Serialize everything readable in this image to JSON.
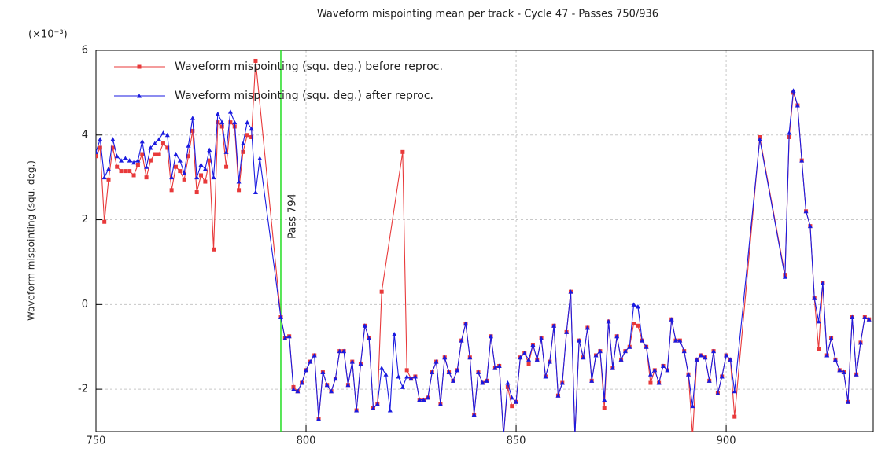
{
  "chart_data": {
    "type": "line",
    "title": "Waveform mispointing mean per track - Cycle 47 - Passes 750/936",
    "y_label": "Waveform mispointing (squ. deg.)",
    "y_multiplier": "(×10⁻³)",
    "xlim": [
      750,
      935
    ],
    "ylim": [
      -3,
      6
    ],
    "xticks": [
      750,
      800,
      850,
      900
    ],
    "yticks": [
      -2,
      0,
      2,
      4,
      6
    ],
    "grid": true,
    "legend": "upper left",
    "marker_line": {
      "x": 794,
      "label": "Pass 794",
      "color": "#22dd22"
    },
    "series": [
      {
        "name": "Waveform mispointing (squ. deg.) before reproc.",
        "color": "#e8393a",
        "marker": "square",
        "x": [
          750,
          751,
          752,
          753,
          754,
          755,
          756,
          757,
          758,
          759,
          760,
          761,
          762,
          763,
          764,
          765,
          766,
          767,
          768,
          769,
          770,
          771,
          772,
          773,
          774,
          775,
          776,
          777,
          778,
          779,
          780,
          781,
          782,
          783,
          784,
          785,
          786,
          787,
          788,
          794,
          795,
          796,
          797,
          798,
          799,
          800,
          801,
          802,
          803,
          804,
          805,
          806,
          807,
          808,
          809,
          810,
          811,
          812,
          813,
          814,
          815,
          816,
          817,
          818,
          823,
          824,
          825,
          826,
          827,
          828,
          829,
          830,
          831,
          832,
          833,
          834,
          835,
          836,
          837,
          838,
          839,
          840,
          841,
          842,
          843,
          844,
          845,
          846,
          847,
          848,
          849,
          850,
          851,
          852,
          853,
          854,
          855,
          856,
          857,
          858,
          859,
          860,
          861,
          862,
          863,
          864,
          865,
          866,
          867,
          868,
          869,
          870,
          871,
          872,
          873,
          874,
          875,
          876,
          877,
          878,
          879,
          880,
          881,
          882,
          883,
          884,
          885,
          886,
          887,
          888,
          889,
          890,
          891,
          892,
          893,
          894,
          895,
          896,
          897,
          898,
          899,
          900,
          901,
          902,
          908,
          914,
          915,
          916,
          917,
          918,
          919,
          920,
          921,
          922,
          923,
          924,
          925,
          926,
          927,
          928,
          929,
          930,
          931,
          932,
          933,
          934
        ],
        "values": [
          3.5,
          3.7,
          1.95,
          2.95,
          3.7,
          3.25,
          3.15,
          3.15,
          3.15,
          3.05,
          3.3,
          3.55,
          3.0,
          3.4,
          3.55,
          3.55,
          3.8,
          3.7,
          2.7,
          3.25,
          3.15,
          2.95,
          3.5,
          4.1,
          2.65,
          3.05,
          2.9,
          3.4,
          1.3,
          4.3,
          4.2,
          3.25,
          4.3,
          4.2,
          2.7,
          3.6,
          4.0,
          3.95,
          5.75,
          -0.3,
          -0.8,
          -0.75,
          -1.95,
          -2.05,
          -1.85,
          -1.55,
          -1.35,
          -1.2,
          -2.7,
          -1.6,
          -1.9,
          -2.05,
          -1.75,
          -1.1,
          -1.1,
          -1.9,
          -1.35,
          -2.5,
          -1.4,
          -0.5,
          -0.8,
          -2.45,
          -2.35,
          0.3,
          3.6,
          -1.55,
          -1.75,
          -1.7,
          -2.25,
          -2.25,
          -2.2,
          -1.6,
          -1.35,
          -2.35,
          -1.25,
          -1.6,
          -1.8,
          -1.55,
          -0.85,
          -0.45,
          -1.25,
          -2.6,
          -1.6,
          -1.85,
          -1.8,
          -0.75,
          -1.5,
          -1.45,
          -3.1,
          -1.95,
          -2.4,
          -2.3,
          -1.25,
          -1.15,
          -1.4,
          -0.95,
          -1.3,
          -0.8,
          -1.7,
          -1.35,
          -0.5,
          -2.15,
          -1.85,
          -0.65,
          0.3,
          -3.1,
          -0.85,
          -1.25,
          -0.55,
          -1.8,
          -1.2,
          -1.1,
          -2.45,
          -0.4,
          -1.5,
          -0.75,
          -1.3,
          -1.1,
          -1.0,
          -0.45,
          -0.5,
          -0.85,
          -1.0,
          -1.85,
          -1.55,
          -1.85,
          -1.45,
          -1.55,
          -0.35,
          -0.85,
          -0.85,
          -1.1,
          -1.65,
          -3.1,
          -1.3,
          -1.2,
          -1.25,
          -1.8,
          -1.1,
          -2.1,
          -1.7,
          -1.2,
          -1.3,
          -2.65,
          3.95,
          0.7,
          3.95,
          5.0,
          4.7,
          3.4,
          2.2,
          1.85,
          0.15,
          -1.05,
          0.5,
          -1.2,
          -0.8,
          -1.3,
          -1.55,
          -1.6,
          -2.3,
          -0.3,
          -1.65,
          -0.9,
          -0.3,
          -0.35
        ]
      },
      {
        "name": "Waveform mispointing (squ. deg.) after reproc.",
        "color": "#1a1ae0",
        "marker": "triangle",
        "x": [
          750,
          751,
          752,
          753,
          754,
          755,
          756,
          757,
          758,
          759,
          760,
          761,
          762,
          763,
          764,
          765,
          766,
          767,
          768,
          769,
          770,
          771,
          772,
          773,
          774,
          775,
          776,
          777,
          778,
          779,
          780,
          781,
          782,
          783,
          784,
          785,
          786,
          787,
          788,
          789,
          794,
          795,
          796,
          797,
          798,
          799,
          800,
          801,
          802,
          803,
          804,
          805,
          806,
          807,
          808,
          809,
          810,
          811,
          812,
          813,
          814,
          815,
          816,
          817,
          818,
          819,
          820,
          821,
          822,
          823,
          824,
          825,
          826,
          827,
          828,
          829,
          830,
          831,
          832,
          833,
          834,
          835,
          836,
          837,
          838,
          839,
          840,
          841,
          842,
          843,
          844,
          845,
          846,
          847,
          848,
          849,
          850,
          851,
          852,
          853,
          854,
          855,
          856,
          857,
          858,
          859,
          860,
          861,
          862,
          863,
          864,
          865,
          866,
          867,
          868,
          869,
          870,
          871,
          872,
          873,
          874,
          875,
          876,
          877,
          878,
          879,
          880,
          881,
          882,
          883,
          884,
          885,
          886,
          887,
          888,
          889,
          890,
          891,
          892,
          893,
          894,
          895,
          896,
          897,
          898,
          899,
          900,
          901,
          902,
          908,
          914,
          915,
          916,
          917,
          918,
          919,
          920,
          921,
          922,
          923,
          924,
          925,
          926,
          927,
          928,
          929,
          930,
          931,
          932,
          933,
          934
        ],
        "values": [
          3.6,
          3.9,
          3.0,
          3.2,
          3.9,
          3.5,
          3.4,
          3.45,
          3.4,
          3.35,
          3.4,
          3.85,
          3.25,
          3.7,
          3.8,
          3.9,
          4.05,
          4.0,
          3.0,
          3.55,
          3.4,
          3.1,
          3.75,
          4.4,
          3.0,
          3.3,
          3.2,
          3.65,
          3.0,
          4.5,
          4.3,
          3.6,
          4.55,
          4.3,
          2.9,
          3.8,
          4.3,
          4.15,
          2.65,
          3.45,
          -0.3,
          -0.8,
          -0.75,
          -2.0,
          -2.05,
          -1.85,
          -1.55,
          -1.35,
          -1.2,
          -2.7,
          -1.6,
          -1.9,
          -2.05,
          -1.75,
          -1.1,
          -1.1,
          -1.9,
          -1.35,
          -2.5,
          -1.4,
          -0.5,
          -0.8,
          -2.45,
          -2.35,
          -1.5,
          -1.65,
          -2.5,
          -0.7,
          -1.7,
          -1.95,
          -1.7,
          -1.75,
          -1.7,
          -2.25,
          -2.25,
          -2.2,
          -1.6,
          -1.35,
          -2.35,
          -1.25,
          -1.6,
          -1.8,
          -1.55,
          -0.85,
          -0.45,
          -1.25,
          -2.6,
          -1.6,
          -1.85,
          -1.8,
          -0.75,
          -1.5,
          -1.45,
          -3.1,
          -1.85,
          -2.2,
          -2.3,
          -1.25,
          -1.15,
          -1.3,
          -0.95,
          -1.3,
          -0.8,
          -1.7,
          -1.35,
          -0.5,
          -2.15,
          -1.85,
          -0.65,
          0.3,
          -3.1,
          -0.85,
          -1.25,
          -0.55,
          -1.8,
          -1.2,
          -1.1,
          -2.25,
          -0.4,
          -1.5,
          -0.75,
          -1.3,
          -1.1,
          -1.0,
          0.0,
          -0.05,
          -0.85,
          -1.0,
          -1.65,
          -1.55,
          -1.85,
          -1.45,
          -1.55,
          -0.35,
          -0.85,
          -0.85,
          -1.1,
          -1.65,
          -2.4,
          -1.3,
          -1.2,
          -1.25,
          -1.8,
          -1.1,
          -2.1,
          -1.7,
          -1.2,
          -1.3,
          -2.05,
          3.9,
          0.65,
          4.05,
          5.05,
          4.7,
          3.4,
          2.2,
          1.85,
          0.15,
          -0.4,
          0.5,
          -1.2,
          -0.8,
          -1.3,
          -1.55,
          -1.6,
          -2.3,
          -0.3,
          -1.65,
          -0.9,
          -0.3,
          -0.35
        ]
      }
    ]
  }
}
